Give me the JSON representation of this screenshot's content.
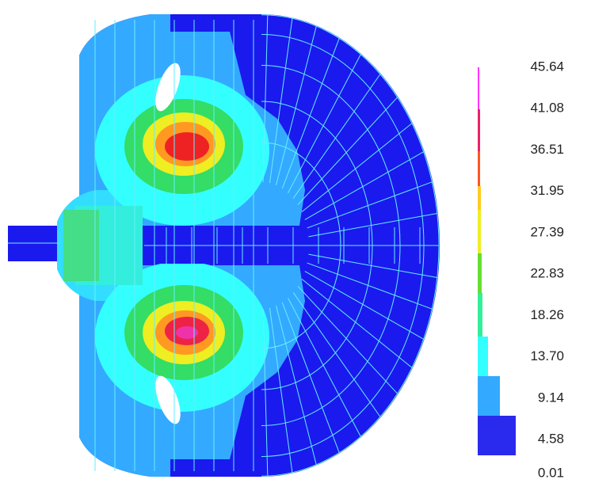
{
  "legend": {
    "labels": [
      "45.64",
      "41.08",
      "36.51",
      "31.95",
      "27.39",
      "22.83",
      "18.26",
      "13.70",
      "9.14",
      "4.58",
      "0.01"
    ]
  }
}
